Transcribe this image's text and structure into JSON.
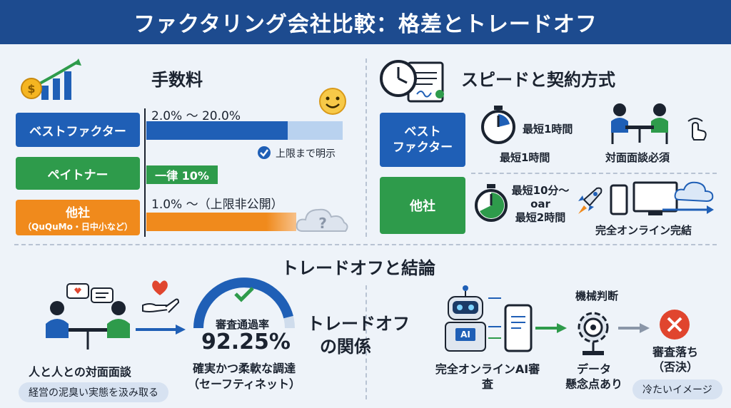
{
  "title": "ファクタリング会社比較：格差とトレードオフ",
  "fees": {
    "heading": "手数料",
    "best_label": "ベストファクター",
    "best_range": "2.0% ～ 20.0%",
    "best_note": "上限まで明示",
    "paytner_label": "ペイトナー",
    "paytner_value": "一律 10%",
    "others_label": "他社",
    "others_sub": "（QuQuMo・日中小など）",
    "others_range": "1.0% ～（上限非公開）",
    "best_fraction": 0.72,
    "others_fraction": 0.72
  },
  "speed": {
    "heading": "スピードと契約方式",
    "best_label_1": "ベスト",
    "best_label_2": "ファクター",
    "best_time_inline": "最短1時間",
    "best_time": "最短1時間",
    "best_contract": "対面面談必須",
    "others_label": "他社",
    "others_time_1": "最短10分～",
    "others_time_2": "oar",
    "others_time_3": "最短2時間",
    "others_contract": "完全オンライン完結"
  },
  "tradeoff": {
    "heading": "トレードオフと結論",
    "human_caption": "人と人との対面面談",
    "human_note": "経営の泥臭い実態を汲み取る",
    "gauge_label": "審査通過率",
    "gauge_value": "92.25%",
    "gauge_fraction": 0.9225,
    "gauge_caption_1": "確実かつ柔軟な調達",
    "gauge_caption_2": "（セーフティネット）",
    "center_1": "トレードオフ",
    "center_2": "の関係",
    "ai_caption_1": "完全オンラインAI審",
    "ai_caption_2": "査",
    "machine_label": "機械判断",
    "data_1": "データ",
    "data_2": "懸念点あり",
    "reject_1": "審査落ち",
    "reject_2": "（否決）",
    "cold_note": "冷たいイメージ",
    "ai_badge": "AI"
  },
  "colors": {
    "navy": "#1d4b8f",
    "blue": "#1f5fb6",
    "green": "#2e9b4b",
    "orange": "#f08a1c",
    "red": "#e0452e"
  }
}
